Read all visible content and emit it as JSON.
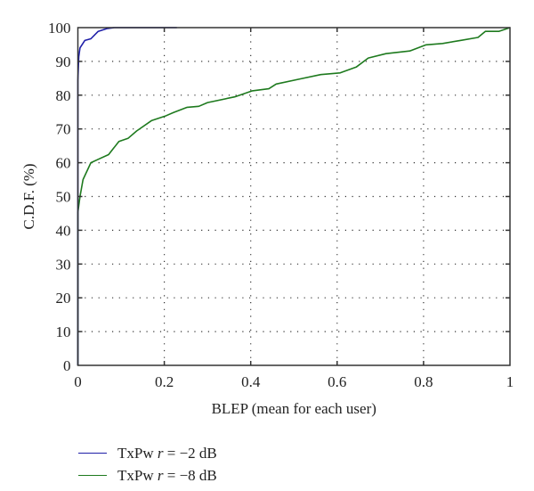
{
  "chart_data": {
    "type": "line",
    "title": "",
    "xlabel": "BLEP (mean for each user)",
    "ylabel": "C.D.F. (%)",
    "xlim": [
      0,
      1
    ],
    "ylim": [
      0,
      100
    ],
    "xticks": [
      0,
      0.2,
      0.4,
      0.6,
      0.8,
      1
    ],
    "xtick_labels": [
      "0",
      "0.2",
      "0.4",
      "0.6",
      "0.8",
      "1"
    ],
    "yticks": [
      0,
      10,
      20,
      30,
      40,
      50,
      60,
      70,
      80,
      90,
      100
    ],
    "ytick_labels": [
      "0",
      "10",
      "20",
      "30",
      "40",
      "50",
      "60",
      "70",
      "80",
      "90",
      "100"
    ],
    "grid": true,
    "legend_position": "below",
    "series": [
      {
        "name": "TxPw r = −2 dB",
        "label_prefix": "TxPw ",
        "label_var": "r",
        "label_suffix": " = −2 dB",
        "color": "#1f1fa8",
        "x": [
          0,
          0,
          0.002,
          0.005,
          0.016,
          0.03,
          0.047,
          0.067,
          0.084,
          0.229
        ],
        "y": [
          0,
          84.4,
          91.4,
          94.0,
          96.2,
          96.7,
          98.9,
          99.7,
          100,
          100
        ]
      },
      {
        "name": "TxPw r = −8 dB",
        "label_prefix": "TxPw ",
        "label_var": "r",
        "label_suffix": " = −8 dB",
        "color": "#1e7a1e",
        "x": [
          0,
          0,
          0.005,
          0.012,
          0.03,
          0.047,
          0.071,
          0.095,
          0.116,
          0.136,
          0.171,
          0.202,
          0.222,
          0.253,
          0.28,
          0.3,
          0.363,
          0.404,
          0.442,
          0.459,
          0.514,
          0.562,
          0.607,
          0.644,
          0.672,
          0.713,
          0.768,
          0.806,
          0.844,
          0.885,
          0.926,
          0.943,
          0.974,
          1.0
        ],
        "y": [
          0,
          45.3,
          50,
          55,
          60,
          61,
          62.4,
          66.3,
          67.2,
          69.4,
          72.5,
          73.8,
          74.9,
          76.4,
          76.7,
          77.8,
          79.5,
          81.3,
          81.9,
          83.3,
          84.8,
          86.1,
          86.6,
          88.3,
          91.0,
          92.3,
          93.1,
          94.9,
          95.3,
          96.2,
          97.1,
          98.9,
          98.9,
          100
        ]
      }
    ]
  }
}
